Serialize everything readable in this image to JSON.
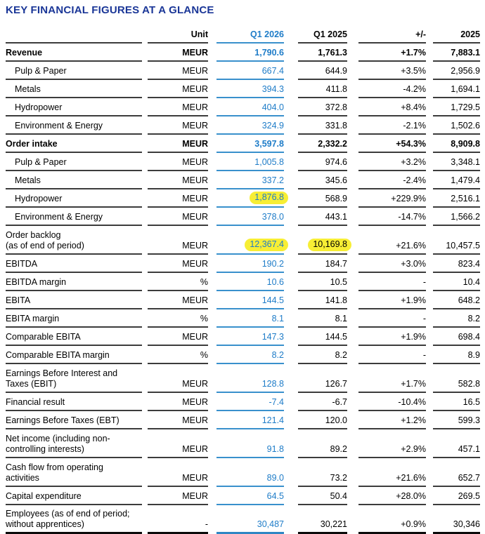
{
  "title": "KEY FINANCIAL FIGURES AT A GLANCE",
  "colors": {
    "title_blue": "#1A3697",
    "accent_blue_text": "#1E7CC8",
    "accent_blue_underline": "#3990CC",
    "row_border": "#3C3C3C",
    "highlight_yellow": "#F7EE35"
  },
  "table": {
    "columns": {
      "label": "",
      "unit": "Unit",
      "q1_2026": "Q1 2026",
      "q1_2025": "Q1 2025",
      "change": "+/-",
      "fy_2025": "2025"
    },
    "rows": [
      {
        "label": "Revenue",
        "label2": null,
        "indent": false,
        "bold": true,
        "last": false,
        "unit": "MEUR",
        "q1_2026": "1,790.6",
        "q1_2025": "1,761.3",
        "change": "+1.7%",
        "fy_2025": "7,883.1",
        "hl_q1_2026": false,
        "hl_q1_2025": false
      },
      {
        "label": "Pulp & Paper",
        "label2": null,
        "indent": true,
        "bold": false,
        "last": false,
        "unit": "MEUR",
        "q1_2026": "667.4",
        "q1_2025": "644.9",
        "change": "+3.5%",
        "fy_2025": "2,956.9",
        "hl_q1_2026": false,
        "hl_q1_2025": false
      },
      {
        "label": "Metals",
        "label2": null,
        "indent": true,
        "bold": false,
        "last": false,
        "unit": "MEUR",
        "q1_2026": "394.3",
        "q1_2025": "411.8",
        "change": "-4.2%",
        "fy_2025": "1,694.1",
        "hl_q1_2026": false,
        "hl_q1_2025": false
      },
      {
        "label": "Hydropower",
        "label2": null,
        "indent": true,
        "bold": false,
        "last": false,
        "unit": "MEUR",
        "q1_2026": "404.0",
        "q1_2025": "372.8",
        "change": "+8.4%",
        "fy_2025": "1,729.5",
        "hl_q1_2026": false,
        "hl_q1_2025": false
      },
      {
        "label": "Environment & Energy",
        "label2": null,
        "indent": true,
        "bold": false,
        "last": false,
        "unit": "MEUR",
        "q1_2026": "324.9",
        "q1_2025": "331.8",
        "change": "-2.1%",
        "fy_2025": "1,502.6",
        "hl_q1_2026": false,
        "hl_q1_2025": false
      },
      {
        "label": "Order intake",
        "label2": null,
        "indent": false,
        "bold": true,
        "last": false,
        "unit": "MEUR",
        "q1_2026": "3,597.8",
        "q1_2025": "2,332.2",
        "change": "+54.3%",
        "fy_2025": "8,909.8",
        "hl_q1_2026": false,
        "hl_q1_2025": false
      },
      {
        "label": "Pulp & Paper",
        "label2": null,
        "indent": true,
        "bold": false,
        "last": false,
        "unit": "MEUR",
        "q1_2026": "1,005.8",
        "q1_2025": "974.6",
        "change": "+3.2%",
        "fy_2025": "3,348.1",
        "hl_q1_2026": false,
        "hl_q1_2025": false
      },
      {
        "label": "Metals",
        "label2": null,
        "indent": true,
        "bold": false,
        "last": false,
        "unit": "MEUR",
        "q1_2026": "337.2",
        "q1_2025": "345.6",
        "change": "-2.4%",
        "fy_2025": "1,479.4",
        "hl_q1_2026": false,
        "hl_q1_2025": false
      },
      {
        "label": "Hydropower",
        "label2": null,
        "indent": true,
        "bold": false,
        "last": false,
        "unit": "MEUR",
        "q1_2026": "1,876.8",
        "q1_2025": "568.9",
        "change": "+229.9%",
        "fy_2025": "2,516.1",
        "hl_q1_2026": true,
        "hl_q1_2025": false
      },
      {
        "label": "Environment & Energy",
        "label2": null,
        "indent": true,
        "bold": false,
        "last": false,
        "unit": "MEUR",
        "q1_2026": "378.0",
        "q1_2025": "443.1",
        "change": "-14.7%",
        "fy_2025": "1,566.2",
        "hl_q1_2026": false,
        "hl_q1_2025": false
      },
      {
        "label": "Order backlog",
        "label2": "(as of end of period)",
        "indent": false,
        "bold": false,
        "last": false,
        "unit": "MEUR",
        "q1_2026": "12,367.4",
        "q1_2025": "10,169.8",
        "change": "+21.6%",
        "fy_2025": "10,457.5",
        "hl_q1_2026": true,
        "hl_q1_2025": true
      },
      {
        "label": "EBITDA",
        "label2": null,
        "indent": false,
        "bold": false,
        "last": false,
        "unit": "MEUR",
        "q1_2026": "190.2",
        "q1_2025": "184.7",
        "change": "+3.0%",
        "fy_2025": "823.4",
        "hl_q1_2026": false,
        "hl_q1_2025": false
      },
      {
        "label": "EBITDA margin",
        "label2": null,
        "indent": false,
        "bold": false,
        "last": false,
        "unit": "%",
        "q1_2026": "10.6",
        "q1_2025": "10.5",
        "change": "-",
        "fy_2025": "10.4",
        "hl_q1_2026": false,
        "hl_q1_2025": false
      },
      {
        "label": "EBITA",
        "label2": null,
        "indent": false,
        "bold": false,
        "last": false,
        "unit": "MEUR",
        "q1_2026": "144.5",
        "q1_2025": "141.8",
        "change": "+1.9%",
        "fy_2025": "648.2",
        "hl_q1_2026": false,
        "hl_q1_2025": false
      },
      {
        "label": "EBITA margin",
        "label2": null,
        "indent": false,
        "bold": false,
        "last": false,
        "unit": "%",
        "q1_2026": "8.1",
        "q1_2025": "8.1",
        "change": "-",
        "fy_2025": "8.2",
        "hl_q1_2026": false,
        "hl_q1_2025": false
      },
      {
        "label": "Comparable EBITA",
        "label2": null,
        "indent": false,
        "bold": false,
        "last": false,
        "unit": "MEUR",
        "q1_2026": "147.3",
        "q1_2025": "144.5",
        "change": "+1.9%",
        "fy_2025": "698.4",
        "hl_q1_2026": false,
        "hl_q1_2025": false
      },
      {
        "label": "Comparable EBITA margin",
        "label2": null,
        "indent": false,
        "bold": false,
        "last": false,
        "unit": "%",
        "q1_2026": "8.2",
        "q1_2025": "8.2",
        "change": "-",
        "fy_2025": "8.9",
        "hl_q1_2026": false,
        "hl_q1_2025": false
      },
      {
        "label": "Earnings Before Interest and",
        "label2": "Taxes (EBIT)",
        "indent": false,
        "bold": false,
        "last": false,
        "unit": "MEUR",
        "q1_2026": "128.8",
        "q1_2025": "126.7",
        "change": "+1.7%",
        "fy_2025": "582.8",
        "hl_q1_2026": false,
        "hl_q1_2025": false
      },
      {
        "label": "Financial result",
        "label2": null,
        "indent": false,
        "bold": false,
        "last": false,
        "unit": "MEUR",
        "q1_2026": "-7.4",
        "q1_2025": "-6.7",
        "change": "-10.4%",
        "fy_2025": "16.5",
        "hl_q1_2026": false,
        "hl_q1_2025": false
      },
      {
        "label": "Earnings Before Taxes (EBT)",
        "label2": null,
        "indent": false,
        "bold": false,
        "last": false,
        "unit": "MEUR",
        "q1_2026": "121.4",
        "q1_2025": "120.0",
        "change": "+1.2%",
        "fy_2025": "599.3",
        "hl_q1_2026": false,
        "hl_q1_2025": false
      },
      {
        "label": "Net income (including non-",
        "label2": "controlling interests)",
        "indent": false,
        "bold": false,
        "last": false,
        "unit": "MEUR",
        "q1_2026": "91.8",
        "q1_2025": "89.2",
        "change": "+2.9%",
        "fy_2025": "457.1",
        "hl_q1_2026": false,
        "hl_q1_2025": false
      },
      {
        "label": "Cash flow from operating",
        "label2": "activities",
        "indent": false,
        "bold": false,
        "last": false,
        "unit": "MEUR",
        "q1_2026": "89.0",
        "q1_2025": "73.2",
        "change": "+21.6%",
        "fy_2025": "652.7",
        "hl_q1_2026": false,
        "hl_q1_2025": false
      },
      {
        "label": "Capital expenditure",
        "label2": null,
        "indent": false,
        "bold": false,
        "last": false,
        "unit": "MEUR",
        "q1_2026": "64.5",
        "q1_2025": "50.4",
        "change": "+28.0%",
        "fy_2025": "269.5",
        "hl_q1_2026": false,
        "hl_q1_2025": false
      },
      {
        "label": "Employees (as of end of period;",
        "label2": "without apprentices)",
        "indent": false,
        "bold": false,
        "last": true,
        "unit": "-",
        "q1_2026": "30,487",
        "q1_2025": "30,221",
        "change": "+0.9%",
        "fy_2025": "30,346",
        "hl_q1_2026": false,
        "hl_q1_2025": false
      }
    ]
  }
}
